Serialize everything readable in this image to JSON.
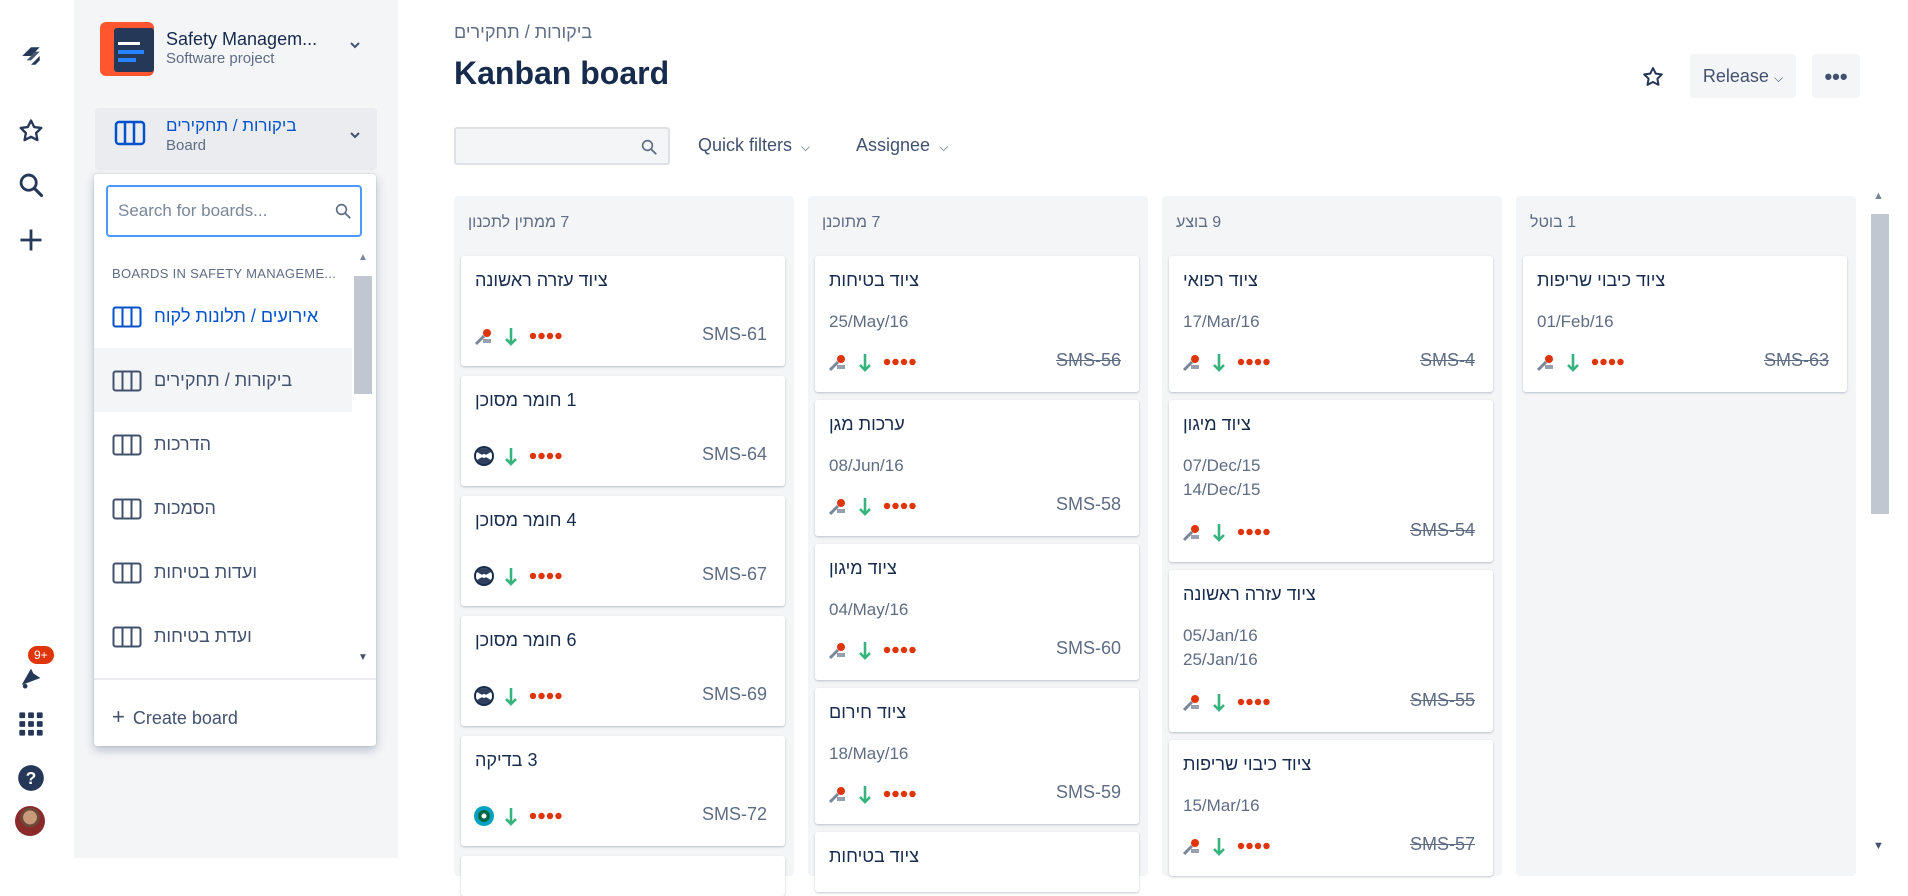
{
  "global_nav": {
    "badge": "9+"
  },
  "sidebar": {
    "project_name": "Safety Managem...",
    "project_type": "Software project",
    "board_name": "ביקורות / תחקירים",
    "board_type": "Board"
  },
  "dropdown": {
    "search_placeholder": "Search for boards...",
    "section_label": "BOARDS IN SAFETY MANAGEME...",
    "items": [
      {
        "label": "אירועים / תלונות לקוח",
        "active": true
      },
      {
        "label": "ביקורות / תחקירים",
        "selected": true
      },
      {
        "label": "הדרכות"
      },
      {
        "label": "הסמכות"
      },
      {
        "label": "ועדות בטיחות"
      },
      {
        "label": "ועדת בטיחות"
      }
    ],
    "create_label": "Create board"
  },
  "header": {
    "breadcrumb": "ביקורות / תחקירים",
    "title": "Kanban board",
    "release_label": "Release",
    "more_label": "•••",
    "quick_filters_label": "Quick filters",
    "assignee_label": "Assignee"
  },
  "columns": [
    {
      "header": "7 ממתין לתכנון",
      "cards": [
        {
          "title": "ציוד עזרה ראשונה",
          "key": "SMS-61",
          "avatar": "tool-icon"
        },
        {
          "title": "1 חומר מסוכן",
          "key": "SMS-64",
          "avatar": "radiation-icon"
        },
        {
          "title": "4 חומר מסוכן",
          "key": "SMS-67",
          "avatar": "radiation-icon"
        },
        {
          "title": "6 חומר מסוכן",
          "key": "SMS-69",
          "avatar": "radiation-icon"
        },
        {
          "title": "3 בדיקה",
          "key": "SMS-72",
          "avatar": "globe-icon"
        }
      ]
    },
    {
      "header": "7 מתוכנן",
      "cards": [
        {
          "title": "ציוד בטיחות",
          "date1": "25/May/16",
          "key": "SMS-56",
          "done": true
        },
        {
          "title": "ערכות מגן",
          "date1": "08/Jun/16",
          "key": "SMS-58"
        },
        {
          "title": "ציוד מיגון",
          "date1": "04/May/16",
          "key": "SMS-60"
        },
        {
          "title": "ציוד חירום",
          "date1": "18/May/16",
          "key": "SMS-59"
        },
        {
          "title": "ציוד בטיחות",
          "key": ""
        }
      ]
    },
    {
      "header": "9 בוצע",
      "cards": [
        {
          "title": "ציוד רפואי",
          "date1": "17/Mar/16",
          "key": "SMS-4",
          "done": true
        },
        {
          "title": "ציוד מיגון",
          "date1": "07/Dec/15",
          "date2": "14/Dec/15",
          "key": "SMS-54",
          "done": true
        },
        {
          "title": "ציוד עזרה ראשונה",
          "date1": "05/Jan/16",
          "date2": "25/Jan/16",
          "key": "SMS-55",
          "done": true
        },
        {
          "title": "ציוד כיבוי שריפות",
          "date1": "15/Mar/16",
          "key": "SMS-57",
          "done": true
        }
      ]
    },
    {
      "header": "1 בוטל",
      "cards": [
        {
          "title": "ציוד כיבוי שריפות",
          "date1": "01/Feb/16",
          "key": "SMS-63",
          "done": true
        }
      ]
    }
  ],
  "colors": {
    "accent": "#0052cc",
    "priority_low": "#36b37e",
    "dots": "#de350b",
    "sidebar_bg": "#f4f5f7"
  }
}
